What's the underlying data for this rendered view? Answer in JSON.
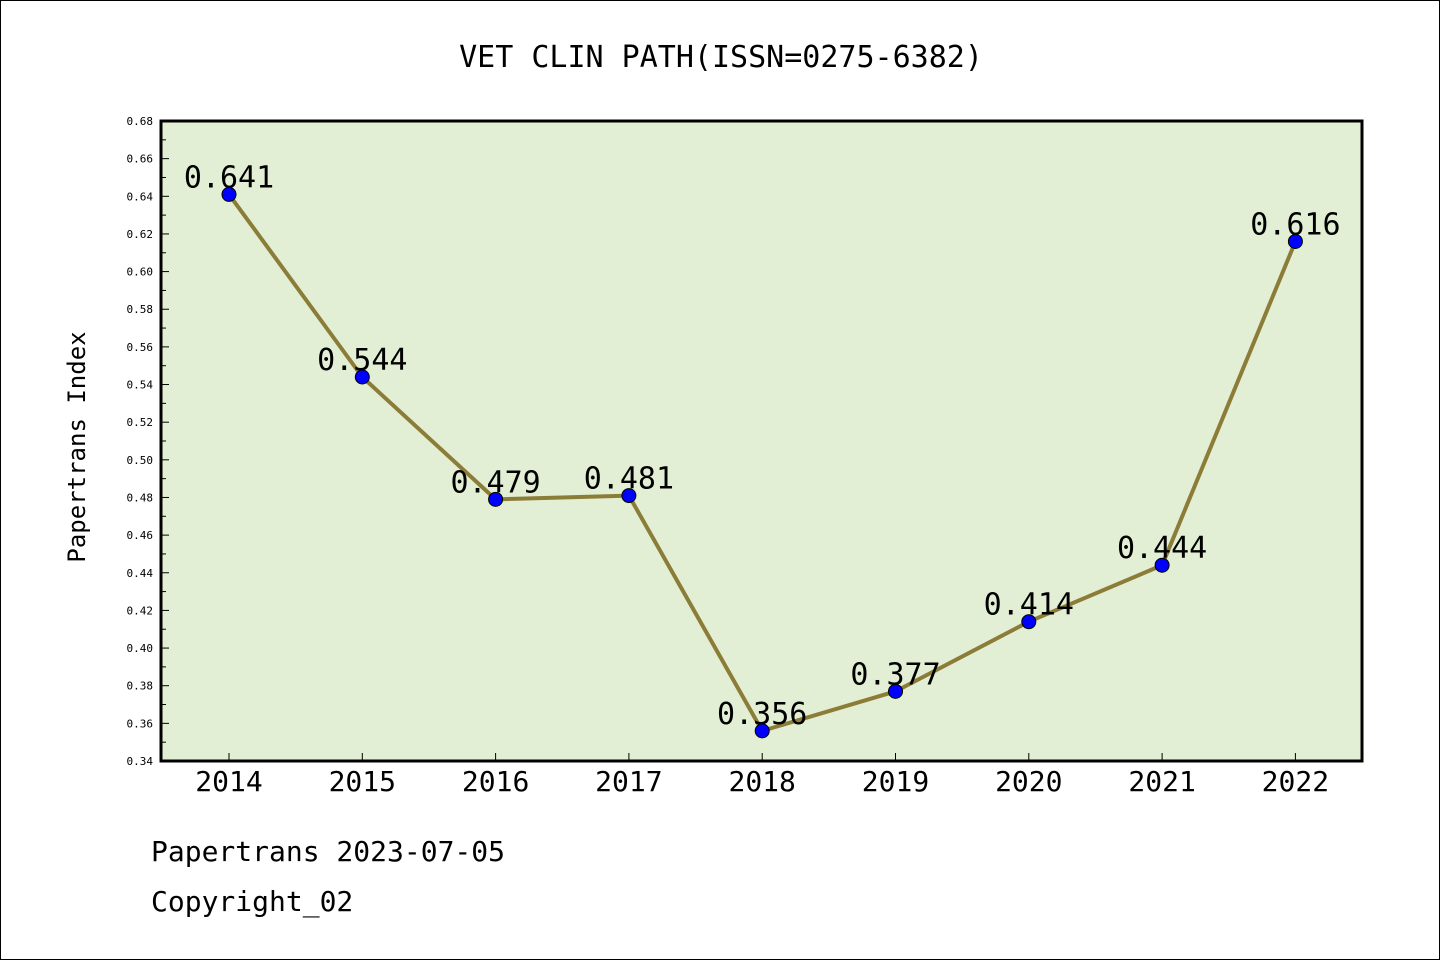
{
  "chart_data": {
    "type": "line",
    "title": "VET CLIN PATH(ISSN=0275-6382)",
    "xlabel": "",
    "ylabel": "Papertrans Index",
    "categories": [
      "2014",
      "2015",
      "2016",
      "2017",
      "2018",
      "2019",
      "2020",
      "2021",
      "2022"
    ],
    "series": [
      {
        "values": [
          0.641,
          0.544,
          0.479,
          0.481,
          0.356,
          0.377,
          0.414,
          0.444,
          0.616
        ],
        "value_labels": [
          "0.641",
          "0.544",
          "0.479",
          "0.481",
          "0.356",
          "0.377",
          "0.414",
          "0.444",
          "0.616"
        ]
      }
    ],
    "ylim": [
      0.34,
      0.68
    ],
    "yticks": [
      "0.34",
      "0.36",
      "0.38",
      "0.40",
      "0.42",
      "0.44",
      "0.46",
      "0.48",
      "0.50",
      "0.52",
      "0.54",
      "0.56",
      "0.58",
      "0.60",
      "0.62",
      "0.64",
      "0.66",
      "0.68"
    ],
    "grid": false,
    "colors": {
      "plot_background": "#e2efd5",
      "line": "#8b7d38",
      "marker": "#0000ff"
    }
  },
  "footer": {
    "source": "Papertrans 2023-07-05",
    "copyright": "Copyright_02"
  }
}
